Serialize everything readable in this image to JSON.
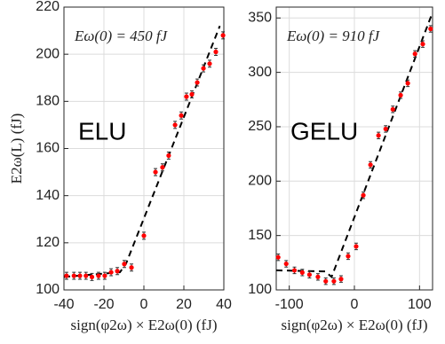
{
  "chart_data": [
    {
      "type": "scatter",
      "annotation": "Eω(0) = 450 fJ",
      "label": "ELU",
      "xlabel": "sign(φ2ω) × E2ω(0)   (fJ)",
      "ylabel": "E2ω(L)   (fJ)",
      "x": [
        -38.7,
        -35,
        -32,
        -29,
        -26,
        -22.7,
        -19.6,
        -16.4,
        -13.3,
        -9.8,
        -6.2,
        0,
        5.8,
        9.3,
        12.4,
        15.6,
        18.7,
        21.3,
        24,
        26.7,
        29.8,
        32.9,
        36,
        39.6
      ],
      "values": [
        106,
        106,
        106,
        106,
        105.5,
        106,
        106,
        107.5,
        108,
        111,
        109.5,
        123,
        150,
        152,
        157,
        170,
        174,
        182,
        183,
        188,
        194,
        196,
        201,
        208
      ],
      "errors": [
        1.5,
        1.5,
        1.5,
        1.5,
        1.5,
        1.5,
        1.5,
        1.5,
        1.5,
        1.5,
        1.5,
        1.5,
        1.5,
        1.5,
        1.5,
        1.5,
        1.5,
        1.5,
        1.5,
        1.5,
        1.5,
        1.5,
        1.5,
        1.5
      ],
      "color": "#ff0000",
      "fit_x": [
        -40,
        -12,
        -9,
        38
      ],
      "fit_values": [
        105.5,
        107.5,
        111,
        212
      ],
      "fit_color": "#000000",
      "xlim": [
        -40,
        40
      ],
      "ylim": [
        100,
        220
      ],
      "xticks": [
        -40,
        -20,
        0,
        20,
        40
      ],
      "yticks": [
        100,
        120,
        140,
        160,
        180,
        200,
        220
      ],
      "grid": true
    },
    {
      "type": "scatter",
      "annotation": "Eω(0) = 910 fJ",
      "label": "GELU",
      "xlabel": "sign(φ2ω) × E2ω(0)   (fJ)",
      "x": [
        -117,
        -104.7,
        -92,
        -80,
        -69,
        -56,
        -44,
        -31.5,
        -20.5,
        -9.6,
        2.7,
        13.7,
        24.7,
        37,
        48,
        59,
        71,
        82,
        93,
        105,
        117
      ],
      "values": [
        130,
        124,
        118,
        116,
        114,
        112,
        108,
        108,
        110,
        131,
        140,
        187,
        215,
        242,
        248,
        266,
        279,
        290,
        317,
        326,
        340
      ],
      "errors": [
        3,
        3,
        3,
        3,
        3,
        3,
        3,
        3,
        3,
        3,
        3,
        3,
        3,
        3,
        3,
        3,
        3,
        3,
        3,
        3,
        3
      ],
      "color": "#ff0000",
      "fit_x": [
        -120,
        -45,
        -35,
        118
      ],
      "fit_values": [
        118,
        117,
        112,
        352
      ],
      "fit_color": "#000000",
      "xlim": [
        -120,
        120
      ],
      "ylim": [
        100,
        360
      ],
      "xticks": [
        -100,
        0,
        100
      ],
      "yticks": [
        100,
        150,
        200,
        250,
        300,
        350
      ],
      "grid": true
    }
  ]
}
